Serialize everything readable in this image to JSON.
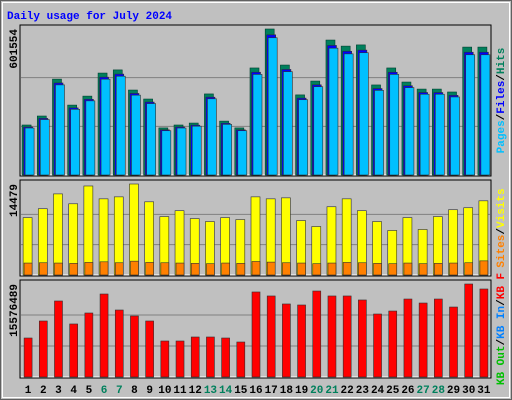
{
  "legend_separator": "/",
  "weekend_days": [
    6,
    7,
    13,
    14,
    20,
    21,
    27,
    28
  ],
  "weekend_color": "#00805c",
  "chart_data": [
    {
      "type": "bar",
      "title": "Daily usage for July 2024",
      "ylim": [
        0,
        601554
      ],
      "yticks": [
        601554
      ],
      "series": [
        {
          "name": "Hits",
          "color": "#00805c",
          "values": [
            206000,
            243000,
            395000,
            288000,
            325000,
            420000,
            433000,
            350000,
            313000,
            194000,
            206000,
            214000,
            334000,
            222000,
            194000,
            441000,
            601554,
            453000,
            330000,
            387000,
            556000,
            531000,
            536000,
            371000,
            441000,
            383000,
            354000,
            354000,
            342000,
            527000,
            527000
          ]
        },
        {
          "name": "Files",
          "color": "#0000ff",
          "values": [
            197800,
            233300,
            379200,
            276500,
            312000,
            403200,
            415700,
            336000,
            300500,
            186200,
            197800,
            205400,
            320600,
            213100,
            186200,
            423400,
            577500,
            434900,
            316800,
            371500,
            533800,
            509800,
            514600,
            356200,
            423400,
            367700,
            339800,
            339800,
            328300,
            505900,
            505900
          ]
        },
        {
          "name": "Pages",
          "color": "#00c0ff",
          "values": [
            193600,
            228400,
            371300,
            270700,
            305500,
            394800,
            407000,
            329000,
            294200,
            182400,
            193600,
            201200,
            314000,
            208700,
            182400,
            414500,
            565500,
            425800,
            310200,
            363800,
            522600,
            499100,
            503800,
            348700,
            414500,
            360000,
            332800,
            332800,
            321500,
            495400,
            495400
          ]
        }
      ]
    },
    {
      "type": "bar",
      "ylim": [
        0,
        14479
      ],
      "yticks": [
        14479
      ],
      "series": [
        {
          "name": "Visits",
          "color": "#ffff00",
          "values": [
            9128,
            10545,
            12905,
            11331,
            14165,
            12118,
            12433,
            14479,
            11646,
            9286,
            10230,
            8971,
            8499,
            9128,
            8813,
            12433,
            12118,
            12276,
            8656,
            7712,
            10859,
            12118,
            10230,
            8499,
            7082,
            9128,
            7239,
            9286,
            10387,
            10702,
            11803
          ]
        },
        {
          "name": "Sites",
          "color": "#ff8000",
          "values": [
            1900,
            1950,
            1900,
            1850,
            2000,
            2100,
            1950,
            2200,
            2000,
            1950,
            1900,
            1850,
            1800,
            1900,
            1850,
            2150,
            2050,
            1950,
            1900,
            1800,
            1900,
            2000,
            1950,
            1850,
            1800,
            1900,
            1800,
            1850,
            1900,
            1950,
            2250
          ]
        }
      ]
    },
    {
      "type": "bar",
      "categories": [
        "1",
        "2",
        "3",
        "4",
        "5",
        "6",
        "7",
        "8",
        "9",
        "10",
        "11",
        "12",
        "13",
        "14",
        "15",
        "16",
        "17",
        "18",
        "19",
        "20",
        "21",
        "22",
        "23",
        "24",
        "25",
        "26",
        "27",
        "28",
        "29",
        "30",
        "31"
      ],
      "ylim": [
        0,
        15576489
      ],
      "yticks": [
        15576489
      ],
      "series": [
        {
          "name": "KB F",
          "color": "#ff0000",
          "values": [
            6530000,
            9380000,
            12730000,
            8880000,
            10720000,
            13900000,
            11220000,
            10220000,
            9380000,
            6030000,
            6030000,
            6700000,
            6700000,
            6530000,
            5860000,
            14240000,
            13570000,
            12230000,
            12060000,
            14400000,
            13570000,
            13570000,
            12900000,
            10550000,
            11050000,
            13060000,
            12390000,
            13060000,
            11720000,
            15576489,
            14740000
          ]
        }
      ],
      "legend_only": [
        {
          "name": "KB In",
          "color": "#0080ff"
        },
        {
          "name": "KB Out",
          "color": "#00c000"
        }
      ]
    }
  ]
}
